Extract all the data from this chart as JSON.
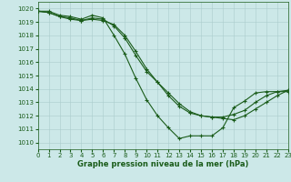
{
  "title": "Graphe pression niveau de la mer (hPa)",
  "bg_color": "#cce8e8",
  "line_color": "#1a5c1a",
  "grid_color": "#aacccc",
  "xlim": [
    0,
    23
  ],
  "ylim": [
    1009.5,
    1020.5
  ],
  "xticks": [
    0,
    1,
    2,
    3,
    4,
    5,
    6,
    7,
    8,
    9,
    10,
    11,
    12,
    13,
    14,
    15,
    16,
    17,
    18,
    19,
    20,
    21,
    22,
    23
  ],
  "yticks": [
    1010,
    1011,
    1012,
    1013,
    1014,
    1015,
    1016,
    1017,
    1018,
    1019,
    1020
  ],
  "series": [
    [
      1019.8,
      1019.8,
      1019.5,
      1019.4,
      1019.2,
      1019.5,
      1019.3,
      1018.0,
      1016.6,
      1014.8,
      1013.2,
      1012.0,
      1011.1,
      1010.3,
      1010.5,
      1010.5,
      1010.5,
      1011.1,
      1012.6,
      1013.1,
      1013.7,
      1013.8,
      1013.8,
      1013.8
    ],
    [
      1019.8,
      1019.7,
      1019.4,
      1019.3,
      1019.1,
      1019.3,
      1019.2,
      1018.7,
      1017.8,
      1016.5,
      1015.3,
      1014.5,
      1013.7,
      1012.9,
      1012.3,
      1012.0,
      1011.9,
      1011.9,
      1012.1,
      1012.4,
      1013.0,
      1013.5,
      1013.8,
      1013.9
    ],
    [
      1019.8,
      1019.7,
      1019.4,
      1019.2,
      1019.1,
      1019.2,
      1019.1,
      1018.8,
      1018.0,
      1016.8,
      1015.5,
      1014.5,
      1013.5,
      1012.7,
      1012.2,
      1012.0,
      1011.9,
      1011.8,
      1011.7,
      1012.0,
      1012.5,
      1013.0,
      1013.5,
      1013.9
    ]
  ],
  "figsize": [
    3.2,
    2.0
  ],
  "dpi": 100,
  "title_fontsize": 6,
  "tick_fontsize": 5,
  "marker": "+",
  "markersize": 3,
  "linewidth": 0.8
}
